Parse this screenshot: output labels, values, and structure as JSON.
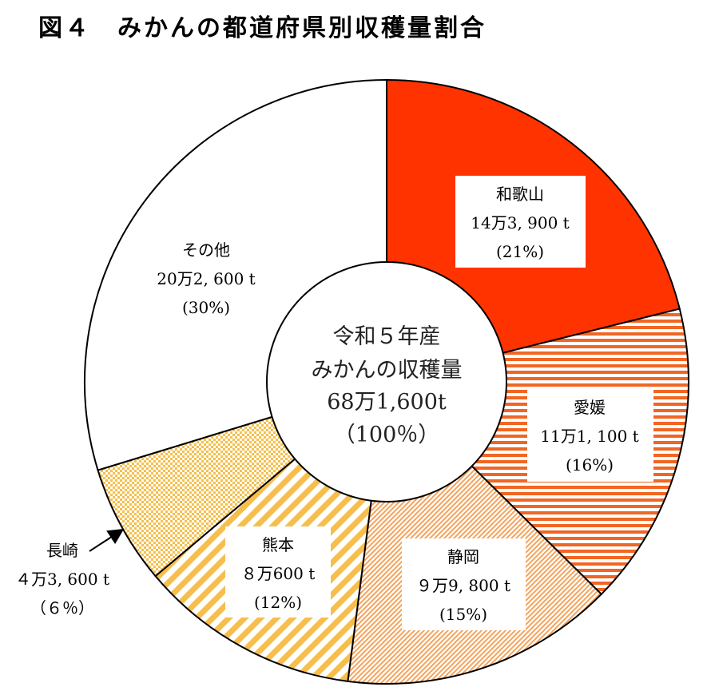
{
  "title": "図４　みかんの都道府県別収穫量割合",
  "colors": {
    "wakayama": "#ff3300",
    "ehime": "#f26522",
    "shizuoka": "#f5a35a",
    "kumamoto": "#f7be4a",
    "nagasaki": "#f5c04e",
    "sonota": "#ffffff",
    "outline": "#000000"
  },
  "chart_data": {
    "type": "pie",
    "title": "図４　みかんの都道府県別収穫量割合",
    "center_label": [
      "令和５年産",
      "みかんの収穫量",
      "68万1,600t",
      "（100％）"
    ],
    "categories": [
      "和歌山",
      "愛媛",
      "静岡",
      "熊本",
      "長崎",
      "その他"
    ],
    "values": [
      143900,
      111100,
      99800,
      80600,
      43600,
      202600
    ],
    "percent": [
      21,
      16,
      15,
      12,
      6,
      30
    ],
    "labels": [
      {
        "name": "和歌山",
        "amount": "14万3, 900 t",
        "pct": "(21%)"
      },
      {
        "name": "愛媛",
        "amount": "11万1, 100 t",
        "pct": "(16%)"
      },
      {
        "name": "静岡",
        "amount": "９万9, 800 t",
        "pct": "(15%)"
      },
      {
        "name": "熊本",
        "amount": "８万600 t",
        "pct": "(12%)"
      },
      {
        "name": "長崎",
        "amount": "４万3, 600 t",
        "pct": "（６％）"
      },
      {
        "name": "その他",
        "amount": "20万2, 600 t",
        "pct": "(30%)"
      }
    ]
  }
}
